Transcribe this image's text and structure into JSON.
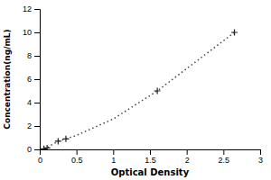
{
  "chart_data": {
    "type": "line",
    "xlabel": "Optical Density",
    "ylabel": "Concentration(ng/mL)",
    "xlim": [
      0,
      3
    ],
    "ylim": [
      0,
      12
    ],
    "xticks": [
      0,
      0.5,
      1,
      1.5,
      2,
      2.5,
      3
    ],
    "yticks": [
      0,
      2,
      4,
      6,
      8,
      10,
      12
    ],
    "grid": false,
    "series": [
      {
        "type": "line",
        "line_style": "dotted",
        "color": "#444444",
        "x": [
          0.057,
          0.1,
          0.15,
          0.25,
          0.356,
          0.5,
          1.0,
          1.6,
          2.65
        ],
        "values": [
          0.05,
          0.12,
          0.35,
          0.7,
          0.9,
          1.2,
          2.6,
          5.0,
          10.0
        ]
      },
      {
        "type": "scatter",
        "marker": "plus",
        "color": "#222222",
        "x": [
          0.057,
          0.1,
          0.25,
          0.356,
          1.6,
          2.65
        ],
        "values": [
          0.05,
          0.12,
          0.7,
          0.9,
          5.0,
          10.0
        ]
      }
    ]
  }
}
